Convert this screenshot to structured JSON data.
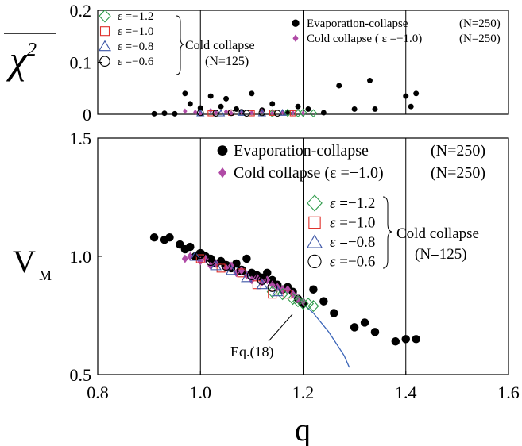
{
  "chart_data": [
    {
      "type": "scatter",
      "title": "",
      "xlabel": "",
      "ylabel": "χ²",
      "xlim": [
        0.8,
        1.6
      ],
      "ylim": [
        0,
        0.2
      ],
      "y_ticks": [
        0,
        0.1,
        0.2
      ],
      "y_tick_labels": [
        "0",
        "0.1",
        "0.2"
      ],
      "vlines": [
        1.0,
        1.2,
        1.4
      ],
      "legend_left": {
        "entries": [
          {
            "eps": "ε",
            "value": "=−1.2",
            "marker": "diamond",
            "color": "#2e9b4a"
          },
          {
            "eps": "ε",
            "value": "=−1.0",
            "marker": "square",
            "color": "#e0302a"
          },
          {
            "eps": "ε",
            "value": "=−0.8",
            "marker": "triangle",
            "color": "#3c55a6"
          },
          {
            "eps": "ε",
            "value": "=−0.6",
            "marker": "circle",
            "color": "#000000"
          }
        ],
        "group_label": "Cold collapse",
        "group_n": "(N=125)"
      },
      "legend_right": [
        {
          "label": "Evaporation-collapse",
          "n": "(N=250)",
          "marker": "dot",
          "color": "#000000"
        },
        {
          "label": "Cold collapse ( ε =−1.0)",
          "n": "(N=250)",
          "marker": "pdiamond",
          "color": "#b04aa6"
        }
      ],
      "series": [
        {
          "name": "Evaporation-collapse (N=250)",
          "marker": "dot",
          "color": "#000000",
          "x": [
            0.91,
            0.93,
            0.95,
            0.97,
            0.98,
            1.0,
            1.02,
            1.04,
            1.05,
            1.07,
            1.08,
            1.1,
            1.12,
            1.14,
            1.17,
            1.19,
            1.21,
            1.24,
            1.27,
            1.3,
            1.33,
            1.34,
            1.4,
            1.41,
            1.42
          ],
          "y": [
            0.001,
            0.002,
            0.001,
            0.04,
            0.02,
            0.012,
            0.035,
            0.015,
            0.03,
            0.01,
            0.005,
            0.04,
            0.008,
            0.02,
            0.004,
            0.015,
            0.01,
            0.003,
            0.055,
            0.01,
            0.065,
            0.01,
            0.035,
            0.015,
            0.04
          ]
        },
        {
          "name": "Cold collapse (ε=−1.0) (N=250)",
          "marker": "pdiamond",
          "color": "#b04aa6",
          "x": [
            0.97,
            0.99,
            1.0,
            1.02,
            1.03,
            1.05,
            1.06,
            1.08,
            1.1,
            1.12,
            1.14,
            1.16,
            1.18,
            1.2
          ],
          "y": [
            0.006,
            0.004,
            0.002,
            0.007,
            0.003,
            0.005,
            0.002,
            0.004,
            0.003,
            0.006,
            0.002,
            0.004,
            0.003,
            0.002
          ]
        },
        {
          "name": "ε=−1.2",
          "marker": "diamond",
          "color": "#2e9b4a",
          "x": [
            1.14,
            1.17,
            1.19,
            1.2,
            1.22
          ],
          "y": [
            0.002,
            0.003,
            0.002,
            0.003,
            0.002
          ]
        },
        {
          "name": "ε=−1.0",
          "marker": "square",
          "color": "#e0302a",
          "x": [
            1.02,
            1.06,
            1.1,
            1.14,
            1.18
          ],
          "y": [
            0.002,
            0.003,
            0.002,
            0.003,
            0.002
          ]
        },
        {
          "name": "ε=−0.8",
          "marker": "triangle",
          "color": "#3c55a6",
          "x": [
            1.0,
            1.04,
            1.08,
            1.12,
            1.16
          ],
          "y": [
            0.002,
            0.002,
            0.003,
            0.002,
            0.003
          ]
        },
        {
          "name": "ε=−0.6",
          "marker": "circle",
          "color": "#000000",
          "x": [
            1.0,
            1.03,
            1.06,
            1.09,
            1.12,
            1.15
          ],
          "y": [
            0.003,
            0.002,
            0.003,
            0.002,
            0.003,
            0.002
          ]
        }
      ]
    },
    {
      "type": "scatter",
      "title": "",
      "xlabel": "q",
      "ylabel": "V_M",
      "xlim": [
        0.8,
        1.6
      ],
      "ylim": [
        0.5,
        1.5
      ],
      "x_ticks": [
        0.8,
        1.0,
        1.2,
        1.4,
        1.6
      ],
      "x_tick_labels": [
        "0.8",
        "1.0",
        "1.2",
        "1.4",
        "1.6"
      ],
      "y_ticks": [
        0.5,
        1.0,
        1.5
      ],
      "y_tick_labels": [
        "0.5",
        "1.0",
        "1.5"
      ],
      "vlines": [
        1.0,
        1.2,
        1.4
      ],
      "legend_top": [
        {
          "label": "Evaporation-collapse",
          "n": "(N=250)",
          "marker": "dot",
          "color": "#000000"
        },
        {
          "label": "Cold collapse (ε =−1.0)",
          "n": "(N=250)",
          "marker": "pdiamond",
          "color": "#b04aa6"
        }
      ],
      "legend_mid": {
        "entries": [
          {
            "eps": "ε",
            "value": "=−1.2",
            "marker": "diamond",
            "color": "#2e9b4a"
          },
          {
            "eps": "ε",
            "value": "=−1.0",
            "marker": "square",
            "color": "#e0302a"
          },
          {
            "eps": "ε",
            "value": "=−0.8",
            "marker": "triangle",
            "color": "#3c55a6"
          },
          {
            "eps": "ε",
            "value": "=−0.6",
            "marker": "circle",
            "color": "#000000"
          }
        ],
        "group_label": "Cold collapse",
        "group_n": "(N=125)"
      },
      "annotation": {
        "text": "Eq.(18)",
        "curve_color": "#3a64b8"
      },
      "curve": {
        "x": [
          1.0,
          1.05,
          1.1,
          1.15,
          1.18,
          1.2,
          1.22,
          1.25,
          1.28,
          1.29
        ],
        "y": [
          1.0,
          0.97,
          0.93,
          0.88,
          0.84,
          0.8,
          0.76,
          0.68,
          0.58,
          0.53
        ]
      },
      "series": [
        {
          "name": "Evaporation-collapse (N=250)",
          "marker": "dot",
          "color": "#000000",
          "x": [
            0.91,
            0.93,
            0.94,
            0.96,
            0.97,
            0.98,
            0.99,
            1.0,
            1.01,
            1.02,
            1.03,
            1.04,
            1.05,
            1.06,
            1.07,
            1.08,
            1.09,
            1.1,
            1.11,
            1.12,
            1.13,
            1.14,
            1.15,
            1.16,
            1.17,
            1.18,
            1.19,
            1.2,
            1.22,
            1.24,
            1.26,
            1.3,
            1.32,
            1.34,
            1.38,
            1.4,
            1.42
          ],
          "y": [
            1.08,
            1.07,
            1.08,
            1.05,
            1.03,
            1.04,
            1.0,
            1.01,
            1.0,
            0.99,
            0.97,
            0.98,
            0.96,
            0.95,
            0.97,
            0.94,
            0.99,
            0.93,
            0.92,
            0.91,
            0.93,
            0.9,
            0.88,
            0.86,
            0.87,
            0.85,
            0.82,
            0.8,
            0.86,
            0.81,
            0.76,
            0.7,
            0.72,
            0.68,
            0.64,
            0.65,
            0.65
          ]
        },
        {
          "name": "Cold collapse (ε=−1.0) (N=250)",
          "marker": "pdiamond",
          "color": "#b04aa6",
          "x": [
            0.97,
            0.98,
            1.0,
            1.01,
            1.02,
            1.03,
            1.05,
            1.06,
            1.07,
            1.08,
            1.09,
            1.1,
            1.11,
            1.12,
            1.13,
            1.14,
            1.15,
            1.16,
            1.17,
            1.18,
            1.19,
            1.2
          ],
          "y": [
            0.99,
            1.0,
            0.98,
            0.99,
            0.96,
            0.97,
            0.95,
            0.96,
            0.93,
            0.94,
            0.92,
            0.9,
            0.91,
            0.89,
            0.9,
            0.88,
            0.87,
            0.86,
            0.86,
            0.84,
            0.82,
            0.81
          ]
        },
        {
          "name": "ε=−1.2",
          "marker": "diamond",
          "color": "#2e9b4a",
          "x": [
            1.14,
            1.16,
            1.18,
            1.19,
            1.2,
            1.21,
            1.22
          ],
          "y": [
            0.85,
            0.84,
            0.82,
            0.81,
            0.8,
            0.8,
            0.79
          ]
        },
        {
          "name": "ε=−1.0",
          "marker": "square",
          "color": "#e0302a",
          "x": [
            1.0,
            1.04,
            1.08,
            1.11,
            1.14,
            1.17
          ],
          "y": [
            0.99,
            0.95,
            0.93,
            0.88,
            0.84,
            0.84
          ]
        },
        {
          "name": "ε=−0.8",
          "marker": "triangle",
          "color": "#3c55a6",
          "x": [
            0.99,
            1.03,
            1.06,
            1.09,
            1.12,
            1.15
          ],
          "y": [
            1.0,
            0.96,
            0.94,
            0.91,
            0.88,
            0.85
          ]
        },
        {
          "name": "ε=−0.6",
          "marker": "circle",
          "color": "#000000",
          "x": [
            1.0,
            1.02,
            1.05,
            1.08,
            1.1,
            1.12,
            1.14
          ],
          "y": [
            1.01,
            0.98,
            0.96,
            0.94,
            0.92,
            0.9,
            0.87
          ]
        }
      ]
    }
  ]
}
